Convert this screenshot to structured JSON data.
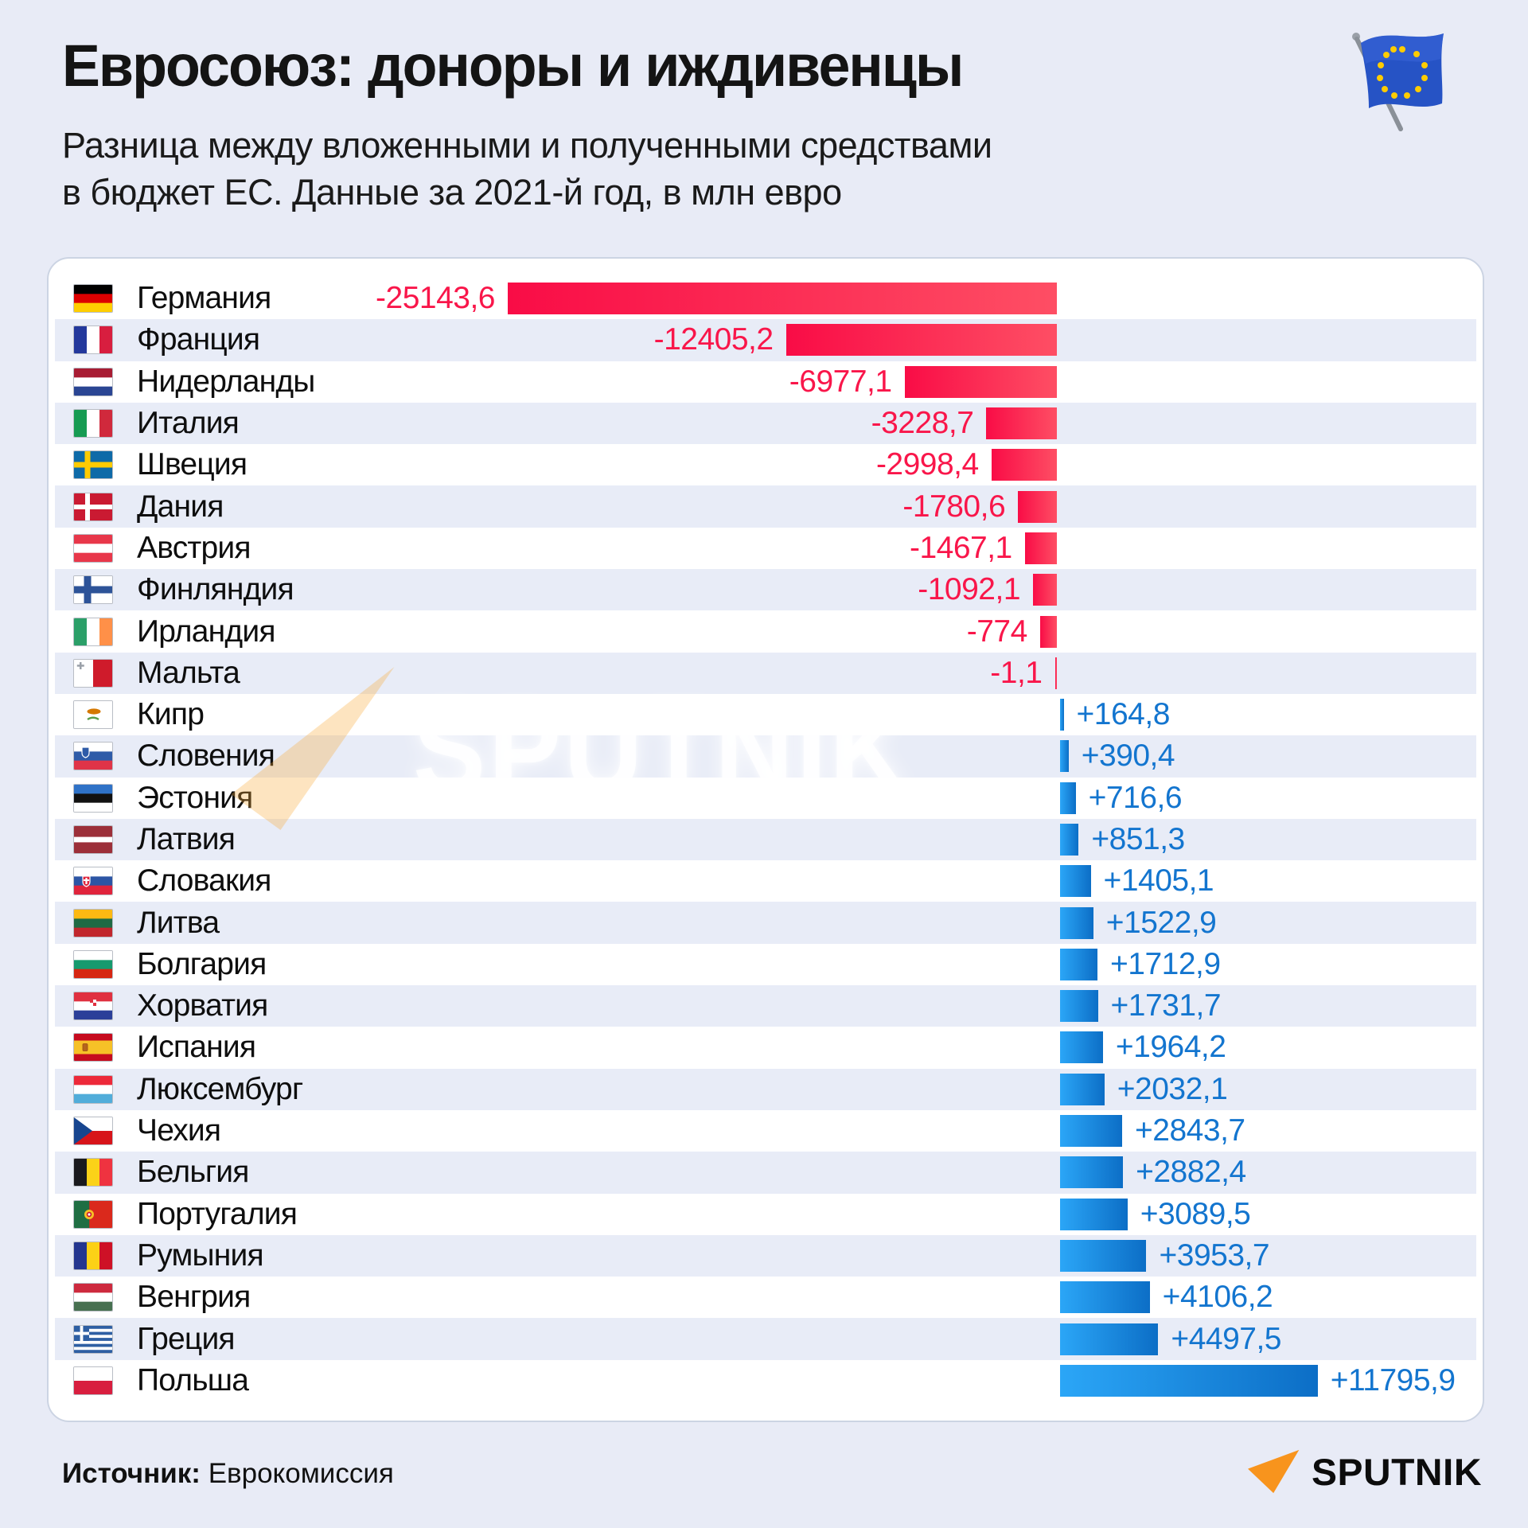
{
  "page": {
    "title": "Евросоюз: доноры и иждивенцы",
    "subtitle_line1": "Разница между вложенными и полученными средствами",
    "subtitle_line2": "в бюджет ЕС. Данные за 2021-й год, в млн евро",
    "source_label": "Источник:",
    "source_value": " Еврокомиссия",
    "watermark_text": "SPUTNIK",
    "brand_text": "SPUTNIK",
    "icons": {
      "eu_flag": "eu-flag-waving-icon",
      "brand_arrow": "sputnik-arrow-icon",
      "watermark_arrow": "sputnik-arrow-watermark-icon"
    }
  },
  "colors": {
    "background": "#e8ebf6",
    "panel": "#ffffff",
    "row_alt": "#e8ecf7",
    "negative_text": "#f9164a",
    "negative_bar_from": "#f90c46",
    "negative_bar_to": "#fe4e64",
    "positive_text": "#1375cf",
    "positive_bar_from": "#2ba6f7",
    "positive_bar_to": "#0c6ec6",
    "brand_orange": "#f8941d"
  },
  "chart_data": {
    "type": "bar",
    "orientation": "horizontal-diverging",
    "title": "Евросоюз: доноры и иждивенцы",
    "subtitle": "Разница между вложенными и полученными средствами в бюджет ЕС. Данные за 2021-й год, в млн евро",
    "unit": "млн евро",
    "year": 2021,
    "xlim": [
      -25143.6,
      11795.9
    ],
    "grid": false,
    "legend": null,
    "categories": [
      "Германия",
      "Франция",
      "Нидерланды",
      "Италия",
      "Швеция",
      "Дания",
      "Австрия",
      "Финляндия",
      "Ирландия",
      "Мальта",
      "Кипр",
      "Словения",
      "Эстония",
      "Латвия",
      "Словакия",
      "Литва",
      "Болгария",
      "Хорватия",
      "Испания",
      "Люксембург",
      "Чехия",
      "Бельгия",
      "Португалия",
      "Румыния",
      "Венгрия",
      "Греция",
      "Польша"
    ],
    "values": [
      -25143.6,
      -12405.2,
      -6977.1,
      -3228.7,
      -2998.4,
      -1780.6,
      -1467.1,
      -1092.1,
      -774,
      -1.1,
      164.8,
      390.4,
      716.6,
      851.3,
      1405.1,
      1522.9,
      1712.9,
      1731.7,
      1964.2,
      2032.1,
      2843.7,
      2882.4,
      3089.5,
      3953.7,
      4106.2,
      4497.5,
      11795.9
    ],
    "labels": [
      "-25143,6",
      "-12405,2",
      "-6977,1",
      "-3228,7",
      "-2998,4",
      "-1780,6",
      "-1467,1",
      "-1092,1",
      "-774",
      "-1,1",
      "+164,8",
      "+390,4",
      "+716,6",
      "+851,3",
      "+1405,1",
      "+1522,9",
      "+1712,9",
      "+1731,7",
      "+1964,2",
      "+2032,1",
      "+2843,7",
      "+2882,4",
      "+3089,5",
      "+3953,7",
      "+4106,2",
      "+4497,5",
      "+11795,9"
    ],
    "flags": [
      "de",
      "fr",
      "nl",
      "it",
      "se",
      "dk",
      "at",
      "fi",
      "ie",
      "mt",
      "cy",
      "si",
      "ee",
      "lv",
      "sk",
      "lt",
      "bg",
      "hr",
      "es",
      "lu",
      "cz",
      "be",
      "pt",
      "ro",
      "hu",
      "gr",
      "pl"
    ]
  }
}
